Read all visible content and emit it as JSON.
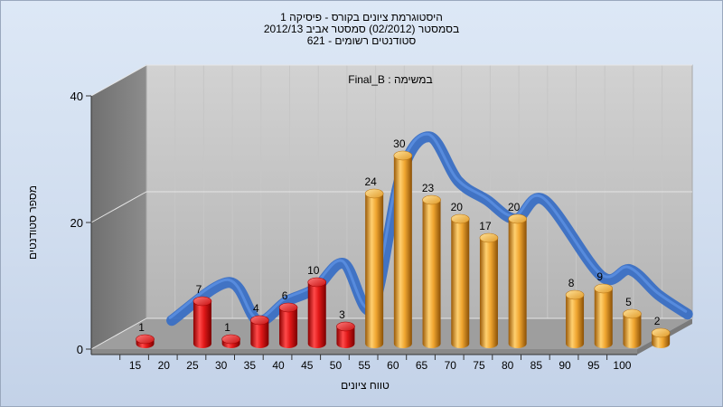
{
  "chart_data": {
    "type": "bar",
    "title_lines": [
      "היסטוגרמת ציונים בקורס - פיסיקה 1",
      "בסמסטר (02/2012) סמסטר אביב 2012/13",
      "סטודנטים רשומים - 621"
    ],
    "subtitle": "במשימה : Final_B",
    "xlabel": "טווח ציונים",
    "ylabel": "מספר סטודנטים",
    "x_ticks": [
      "15",
      "20",
      "25",
      "30",
      "35",
      "40",
      "45",
      "50",
      "55",
      "60",
      "65",
      "70",
      "75",
      "80",
      "85",
      "90",
      "95",
      "100"
    ],
    "y_ticks": [
      "0",
      "20",
      "40"
    ],
    "ylim": [
      0,
      40
    ],
    "grid": true,
    "series": [
      {
        "color": "#e02020",
        "points": [
          {
            "x": 15,
            "value": 1
          },
          {
            "x": 25,
            "value": 7
          },
          {
            "x": 30,
            "value": 1
          },
          {
            "x": 35,
            "value": 4
          },
          {
            "x": 40,
            "value": 6
          },
          {
            "x": 45,
            "value": 10
          },
          {
            "x": 50,
            "value": 3
          }
        ]
      },
      {
        "color": "#f0a830",
        "points": [
          {
            "x": 55,
            "value": 24
          },
          {
            "x": 60,
            "value": 30
          },
          {
            "x": 65,
            "value": 23
          },
          {
            "x": 70,
            "value": 20
          },
          {
            "x": 75,
            "value": 17
          },
          {
            "x": 80,
            "value": 20
          },
          {
            "x": 90,
            "value": 8
          },
          {
            "x": 95,
            "value": 9
          },
          {
            "x": 100,
            "value": 5
          },
          {
            "x": 105,
            "value": 2
          }
        ]
      }
    ],
    "curve_color": "#3a6fc4"
  }
}
